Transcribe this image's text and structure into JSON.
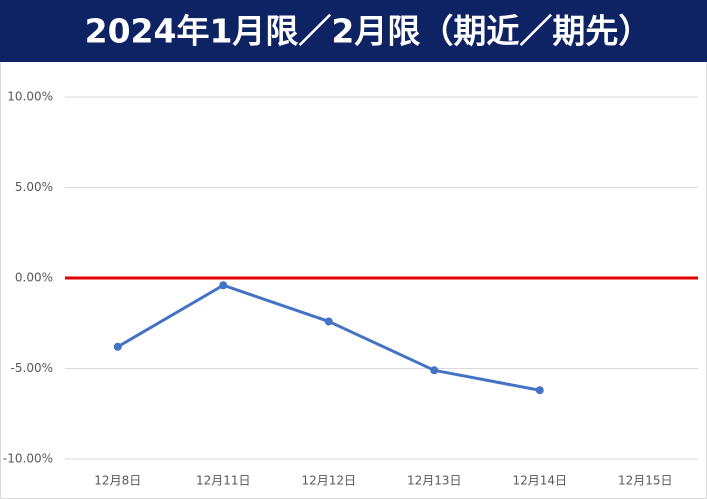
{
  "chart_data": {
    "type": "line",
    "title": "2024年1月限／2月限（期近／期先）",
    "categories": [
      "12月8日",
      "12月11日",
      "12月12日",
      "12月13日",
      "12月14日",
      "12月15日"
    ],
    "series": [
      {
        "color": "#4472c4",
        "values": [
          -3.8,
          -0.4,
          -2.4,
          -5.1,
          -6.2,
          null
        ]
      }
    ],
    "ylim": [
      -10,
      10
    ],
    "yticks": [
      {
        "value": -10,
        "label": "-10.00%"
      },
      {
        "value": -5,
        "label": "-5.00%"
      },
      {
        "value": 0,
        "label": "0.00%"
      },
      {
        "value": 5,
        "label": "5.00%"
      },
      {
        "value": 10,
        "label": "10.00%"
      }
    ],
    "grid": true,
    "zero_line_color": "#e00000",
    "title_background": "#0d2363"
  }
}
